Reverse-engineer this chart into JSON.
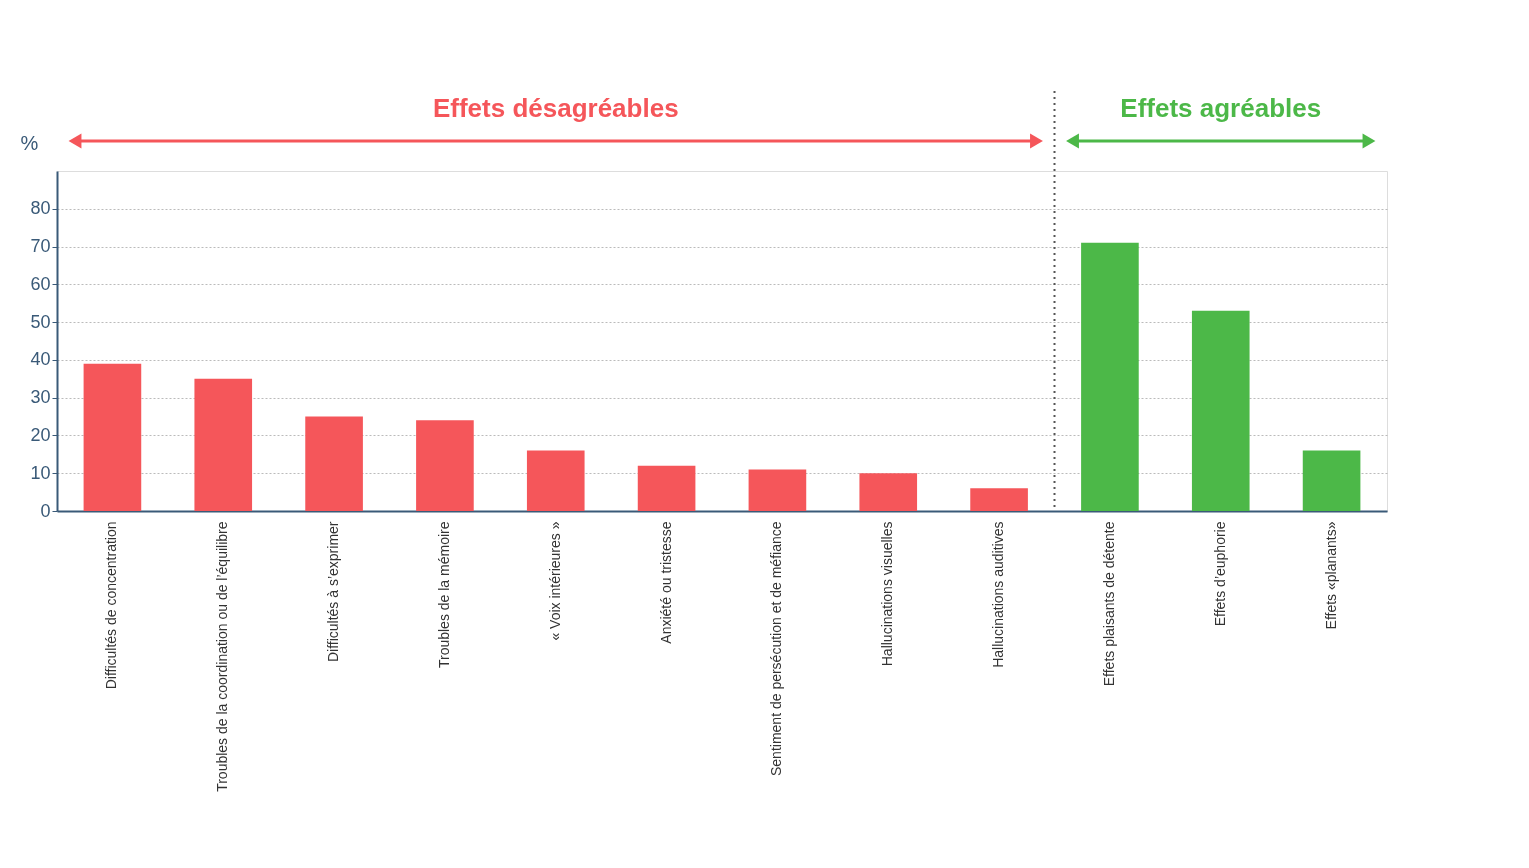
{
  "chart_data": {
    "type": "bar",
    "ylabel": "%",
    "categories": [
      "Difficultés de concentration",
      "Troubles de la coordination ou de l’équilibre",
      "Difficultés à s’exprimer",
      "Troubles de la mémoire",
      "« Voix intérieures »",
      "Anxiété ou tristesse",
      "Sentiment de persécution et de méfiance",
      "Hallucinations visuelles",
      "Hallucinations auditives",
      "Effets plaisants de détente",
      "Effets d’euphorie",
      "Effets «planants»"
    ],
    "values": [
      39,
      35,
      25,
      24,
      16,
      12,
      11,
      10,
      6,
      71,
      53,
      16
    ],
    "colors": [
      "#f5565a",
      "#f5565a",
      "#f5565a",
      "#f5565a",
      "#f5565a",
      "#f5565a",
      "#f5565a",
      "#f5565a",
      "#f5565a",
      "#4cb848",
      "#4cb848",
      "#4cb848"
    ],
    "annotations": [
      "Effets désagréables",
      "Effets agréables"
    ],
    "ref_lines": [
      {
        "axis": "x",
        "value": "Effets plaisants de détente",
        "line_style": "dotted",
        "color": "#555555"
      }
    ],
    "ylim": [
      0,
      90
    ],
    "yticks": [
      0,
      10,
      20,
      30,
      40,
      50,
      60,
      70,
      80
    ],
    "grid": "y"
  }
}
